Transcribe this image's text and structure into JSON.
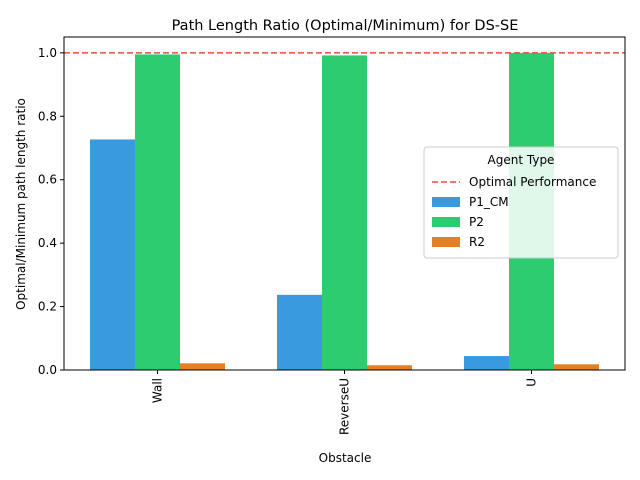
{
  "chart_data": {
    "type": "bar",
    "title": "Path Length Ratio (Optimal/Minimum) for DS-SE",
    "xlabel": "Obstacle",
    "ylabel": "Optimal/Minimum path length ratio",
    "categories": [
      "Wall",
      "ReverseU",
      "U"
    ],
    "series": [
      {
        "name": "P1_CM",
        "color": "#3a9ae0",
        "values": [
          0.727,
          0.237,
          0.044
        ]
      },
      {
        "name": "P2",
        "color": "#2ecc71",
        "values": [
          0.995,
          0.992,
          1.0
        ]
      },
      {
        "name": "R2",
        "color": "#e67e22",
        "values": [
          0.021,
          0.015,
          0.018
        ]
      }
    ],
    "reference_line": {
      "name": "Optimal Performance",
      "value": 1.0,
      "color": "#e74c3c",
      "style": "dashed"
    },
    "ylim": [
      0,
      1.05
    ],
    "yticks": [
      "0.0",
      "0.2",
      "0.4",
      "0.6",
      "0.8",
      "1.0"
    ],
    "legend": {
      "title": "Agent Type",
      "position": "right"
    },
    "grid": false
  }
}
